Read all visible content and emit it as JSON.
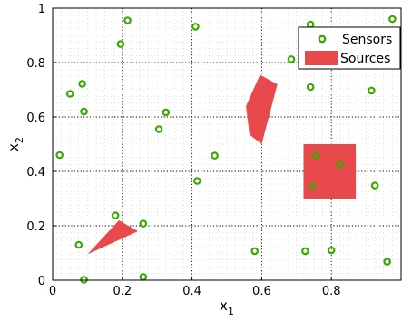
{
  "chart_data": {
    "type": "scatter",
    "title": "",
    "xlabel": "x",
    "xlabel_sub": "1",
    "ylabel": "x",
    "ylabel_sub": "2",
    "xlim": [
      0,
      1
    ],
    "ylim": [
      0,
      1
    ],
    "x_ticks": [
      0,
      0.2,
      0.4,
      0.6,
      0.8
    ],
    "x_tick_labels": [
      "0",
      "0.2",
      "0.4",
      "0.6",
      "0.8"
    ],
    "y_ticks": [
      0,
      0.2,
      0.4,
      0.6,
      0.8,
      1
    ],
    "y_tick_labels": [
      "0",
      "0.2",
      "0.4",
      "0.6",
      "0.8",
      "1"
    ],
    "grid": true,
    "grid_style": "dotted",
    "legend_position": "top-right",
    "series": [
      {
        "name": "Sensors",
        "kind": "scatter",
        "marker": "circle",
        "color": "#3aa800",
        "points": [
          [
            0.215,
            0.955
          ],
          [
            0.195,
            0.868
          ],
          [
            0.41,
            0.932
          ],
          [
            0.74,
            0.94
          ],
          [
            0.975,
            0.96
          ],
          [
            0.085,
            0.722
          ],
          [
            0.05,
            0.685
          ],
          [
            0.09,
            0.62
          ],
          [
            0.325,
            0.617
          ],
          [
            0.305,
            0.555
          ],
          [
            0.685,
            0.812
          ],
          [
            0.74,
            0.71
          ],
          [
            0.915,
            0.697
          ],
          [
            0.02,
            0.46
          ],
          [
            0.465,
            0.458
          ],
          [
            0.415,
            0.365
          ],
          [
            0.755,
            0.458
          ],
          [
            0.825,
            0.425
          ],
          [
            0.745,
            0.345
          ],
          [
            0.925,
            0.348
          ],
          [
            0.18,
            0.238
          ],
          [
            0.26,
            0.208
          ],
          [
            0.075,
            0.13
          ],
          [
            0.58,
            0.107
          ],
          [
            0.725,
            0.107
          ],
          [
            0.8,
            0.11
          ],
          [
            0.96,
            0.068
          ],
          [
            0.26,
            0.012
          ],
          [
            0.09,
            0.002
          ]
        ]
      },
      {
        "name": "Sources",
        "kind": "polygon",
        "color": "#e8494c",
        "polygons": [
          [
            [
              0.555,
              0.64
            ],
            [
              0.595,
              0.755
            ],
            [
              0.645,
              0.72
            ],
            [
              0.6,
              0.5
            ],
            [
              0.565,
              0.535
            ]
          ],
          [
            [
              0.72,
              0.5
            ],
            [
              0.87,
              0.5
            ],
            [
              0.87,
              0.3
            ],
            [
              0.72,
              0.3
            ]
          ],
          [
            [
              0.1,
              0.095
            ],
            [
              0.19,
              0.22
            ],
            [
              0.245,
              0.18
            ]
          ]
        ]
      }
    ]
  }
}
